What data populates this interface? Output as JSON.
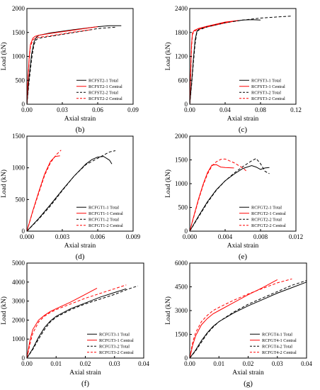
{
  "chart_data": [
    {
      "panel_label": "(b)",
      "type": "line",
      "xlabel": "Axial strain",
      "ylabel": "Load (kN)",
      "xlim": [
        0,
        0.09
      ],
      "ylim": [
        0,
        2000
      ],
      "xticks": [
        "0.00",
        "0.03",
        "0.06",
        "0.09"
      ],
      "yticks": [
        "0",
        "500",
        "1000",
        "1500",
        "2000"
      ],
      "legend_position": "bottom-right",
      "series": [
        {
          "name": "RCFST2-1 Total",
          "color": "#000000",
          "dash": "solid",
          "x": [
            0,
            0.002,
            0.004,
            0.006,
            0.008,
            0.01,
            0.02,
            0.04,
            0.06,
            0.07,
            0.08
          ],
          "y": [
            0,
            600,
            1050,
            1300,
            1400,
            1440,
            1490,
            1560,
            1620,
            1640,
            1640
          ]
        },
        {
          "name": "RCFST2-1 Central",
          "color": "#ff0000",
          "dash": "solid",
          "x": [
            0,
            0.001,
            0.002,
            0.003,
            0.005,
            0.007,
            0.01,
            0.02,
            0.04,
            0.06
          ],
          "y": [
            0,
            600,
            1000,
            1250,
            1380,
            1420,
            1440,
            1480,
            1550,
            1620
          ]
        },
        {
          "name": "RCFST2-2 Total",
          "color": "#000000",
          "dash": "dashed",
          "x": [
            0,
            0.002,
            0.004,
            0.006,
            0.008,
            0.01,
            0.02,
            0.04,
            0.06,
            0.075
          ],
          "y": [
            0,
            500,
            950,
            1250,
            1350,
            1380,
            1420,
            1500,
            1580,
            1610
          ]
        },
        {
          "name": "RCFST2-2 Central",
          "color": "#ff0000",
          "dash": "dashed",
          "x": [
            0,
            0.001,
            0.002,
            0.003,
            0.005,
            0.007,
            0.01,
            0.02,
            0.04,
            0.055
          ],
          "y": [
            0,
            550,
            950,
            1200,
            1340,
            1380,
            1400,
            1430,
            1510,
            1560
          ]
        }
      ]
    },
    {
      "panel_label": "(c)",
      "type": "line",
      "xlabel": "Axial strain",
      "ylabel": "Load (kN)",
      "xlim": [
        0,
        0.12
      ],
      "ylim": [
        0,
        2400
      ],
      "xticks": [
        "0.00",
        "0.04",
        "0.08",
        "0.12"
      ],
      "yticks": [
        "0",
        "600",
        "1200",
        "1800",
        "2400"
      ],
      "legend_position": "bottom-right",
      "series": [
        {
          "name": "RCFST3-1 Total",
          "color": "#000000",
          "dash": "solid",
          "x": [
            0,
            0.002,
            0.004,
            0.006,
            0.008,
            0.01,
            0.02,
            0.04,
            0.06,
            0.07,
            0.08
          ],
          "y": [
            0,
            500,
            1100,
            1600,
            1820,
            1880,
            1950,
            2050,
            2110,
            2120,
            2110
          ]
        },
        {
          "name": "RCFST3-1 Central",
          "color": "#ff0000",
          "dash": "solid",
          "x": [
            0,
            0.001,
            0.002,
            0.003,
            0.005,
            0.01,
            0.02,
            0.04,
            0.055
          ],
          "y": [
            0,
            800,
            1500,
            1780,
            1850,
            1900,
            1960,
            2060,
            2100
          ]
        },
        {
          "name": "RCFST3-2 Total",
          "color": "#000000",
          "dash": "dashed",
          "x": [
            0,
            0.002,
            0.004,
            0.006,
            0.008,
            0.01,
            0.02,
            0.04,
            0.06,
            0.08,
            0.1,
            0.115
          ],
          "y": [
            0,
            450,
            1000,
            1500,
            1800,
            1860,
            1940,
            2040,
            2110,
            2160,
            2190,
            2210
          ]
        },
        {
          "name": "RCFST3-2 Central",
          "color": "#ff0000",
          "dash": "dashed",
          "x": [
            0,
            0.001,
            0.002,
            0.003,
            0.005,
            0.01,
            0.02,
            0.04,
            0.05
          ],
          "y": [
            0,
            700,
            1400,
            1750,
            1830,
            1880,
            1940,
            2040,
            2080
          ]
        }
      ]
    },
    {
      "panel_label": "(d)",
      "type": "line",
      "xlabel": "Axial strain",
      "ylabel": "Load (kN)",
      "xlim": [
        0,
        0.009
      ],
      "ylim": [
        0,
        1500
      ],
      "xticks": [
        "0.000",
        "0.003",
        "0.006",
        "0.009"
      ],
      "yticks": [
        "0",
        "500",
        "1000",
        "1500"
      ],
      "legend_position": "bottom-right",
      "series": [
        {
          "name": "RCFGT1-1 Total",
          "color": "#000000",
          "dash": "solid",
          "x": [
            0,
            0.001,
            0.002,
            0.003,
            0.004,
            0.005,
            0.0055,
            0.006,
            0.0065,
            0.007,
            0.0072
          ],
          "y": [
            0,
            200,
            420,
            650,
            870,
            1060,
            1130,
            1170,
            1180,
            1120,
            1060
          ]
        },
        {
          "name": "RCFGT1-1 Central",
          "color": "#ff0000",
          "dash": "solid",
          "x": [
            0,
            0.0005,
            0.001,
            0.0015,
            0.002,
            0.0024,
            0.0028
          ],
          "y": [
            0,
            320,
            620,
            900,
            1100,
            1180,
            1190
          ]
        },
        {
          "name": "RCFGT1-2 Total",
          "color": "#000000",
          "dash": "dashed",
          "x": [
            0,
            0.001,
            0.002,
            0.003,
            0.004,
            0.005,
            0.006,
            0.0065,
            0.007,
            0.0075
          ],
          "y": [
            0,
            190,
            400,
            640,
            870,
            1050,
            1150,
            1200,
            1250,
            1270
          ]
        },
        {
          "name": "RCFGT1-2 Central",
          "color": "#ff0000",
          "dash": "dashed",
          "x": [
            0,
            0.0005,
            0.001,
            0.0015,
            0.002,
            0.0025,
            0.0029
          ],
          "y": [
            0,
            310,
            600,
            880,
            1080,
            1210,
            1280
          ]
        }
      ]
    },
    {
      "panel_label": "(e)",
      "type": "line",
      "xlabel": "Axial strain",
      "ylabel": "Load (kN)",
      "xlim": [
        0,
        0.012
      ],
      "ylim": [
        0,
        2000
      ],
      "xticks": [
        "0.000",
        "0.004",
        "0.008",
        "0.012"
      ],
      "yticks": [
        "0",
        "500",
        "1000",
        "1500",
        "2000"
      ],
      "legend_position": "bottom-right",
      "series": [
        {
          "name": "RCFGT2-1 Total",
          "color": "#000000",
          "dash": "solid",
          "x": [
            0,
            0.001,
            0.002,
            0.003,
            0.004,
            0.005,
            0.006,
            0.007,
            0.0075,
            0.008,
            0.0085,
            0.009
          ],
          "y": [
            0,
            320,
            620,
            870,
            1060,
            1200,
            1320,
            1380,
            1350,
            1300,
            1330,
            1340
          ]
        },
        {
          "name": "RCFGT2-1 Central",
          "color": "#ff0000",
          "dash": "solid",
          "x": [
            0,
            0.0005,
            0.001,
            0.0015,
            0.002,
            0.0025,
            0.003,
            0.0035,
            0.004,
            0.005
          ],
          "y": [
            0,
            350,
            680,
            980,
            1230,
            1390,
            1400,
            1350,
            1340,
            1330
          ]
        },
        {
          "name": "RCFGT2-2 Total",
          "color": "#000000",
          "dash": "dashed",
          "x": [
            0,
            0.001,
            0.002,
            0.003,
            0.004,
            0.005,
            0.006,
            0.007,
            0.0075,
            0.008,
            0.0085,
            0.009
          ],
          "y": [
            0,
            300,
            600,
            860,
            1060,
            1220,
            1360,
            1480,
            1530,
            1420,
            1260,
            1210
          ]
        },
        {
          "name": "RCFGT2-2 Central",
          "color": "#ff0000",
          "dash": "dashed",
          "x": [
            0,
            0.0005,
            0.001,
            0.0015,
            0.002,
            0.0025,
            0.003,
            0.0035,
            0.004,
            0.005,
            0.006,
            0.0065
          ],
          "y": [
            0,
            330,
            660,
            960,
            1200,
            1370,
            1460,
            1510,
            1520,
            1440,
            1330,
            1250
          ]
        }
      ]
    },
    {
      "panel_label": "(f)",
      "type": "line",
      "xlabel": "Axial strain",
      "ylabel": "Load (kN)",
      "xlim": [
        0,
        0.04
      ],
      "ylim": [
        0,
        5000
      ],
      "xticks": [
        "0.00",
        "0.01",
        "0.02",
        "0.03",
        "0.04"
      ],
      "yticks": [
        "0",
        "1000",
        "2000",
        "3000",
        "4000",
        "5000"
      ],
      "legend_position": "bottom-right",
      "series": [
        {
          "name": "RCFGT3-1 Total",
          "color": "#000000",
          "dash": "solid",
          "x": [
            0,
            0.002,
            0.004,
            0.006,
            0.008,
            0.01,
            0.015,
            0.02,
            0.025,
            0.03,
            0.034
          ],
          "y": [
            0,
            500,
            1100,
            1600,
            1950,
            2200,
            2600,
            2900,
            3200,
            3450,
            3650
          ]
        },
        {
          "name": "RCFGT3-1 Central",
          "color": "#ff0000",
          "dash": "solid",
          "x": [
            0,
            0.001,
            0.002,
            0.004,
            0.006,
            0.008,
            0.01,
            0.015,
            0.02,
            0.024
          ],
          "y": [
            0,
            900,
            1500,
            2000,
            2250,
            2450,
            2600,
            2950,
            3350,
            3680
          ]
        },
        {
          "name": "RCFGT3-2 Total",
          "color": "#000000",
          "dash": "dashed",
          "x": [
            0,
            0.002,
            0.004,
            0.006,
            0.008,
            0.01,
            0.015,
            0.02,
            0.025,
            0.03,
            0.035,
            0.038
          ],
          "y": [
            0,
            450,
            1000,
            1500,
            1900,
            2150,
            2550,
            2850,
            3100,
            3350,
            3650,
            3800
          ]
        },
        {
          "name": "RCFGT3-2 Central",
          "color": "#ff0000",
          "dash": "dashed",
          "x": [
            0,
            0.001,
            0.002,
            0.004,
            0.006,
            0.008,
            0.01,
            0.015,
            0.02,
            0.025,
            0.03,
            0.034
          ],
          "y": [
            0,
            700,
            1300,
            1900,
            2200,
            2400,
            2550,
            2850,
            3150,
            3400,
            3650,
            3850
          ]
        }
      ]
    },
    {
      "panel_label": "(g)",
      "type": "line",
      "xlabel": "Axial strain",
      "ylabel": "Load (kN)",
      "xlim": [
        0,
        0.04
      ],
      "ylim": [
        0,
        6000
      ],
      "xticks": [
        "0.00",
        "0.01",
        "0.02",
        "0.03",
        "0.04"
      ],
      "yticks": [
        "0",
        "1500",
        "3000",
        "4500",
        "6000"
      ],
      "legend_position": "bottom-right",
      "series": [
        {
          "name": "RCFGT4-1 Total",
          "color": "#000000",
          "dash": "solid",
          "x": [
            0,
            0.002,
            0.004,
            0.006,
            0.008,
            0.01,
            0.015,
            0.02,
            0.025,
            0.03,
            0.035,
            0.04
          ],
          "y": [
            0,
            500,
            1100,
            1600,
            2000,
            2300,
            2850,
            3300,
            3700,
            4100,
            4450,
            4800
          ]
        },
        {
          "name": "RCFGT4-1 Central",
          "color": "#ff0000",
          "dash": "solid",
          "x": [
            0,
            0.001,
            0.002,
            0.004,
            0.006,
            0.008,
            0.01,
            0.015,
            0.02,
            0.025,
            0.03
          ],
          "y": [
            0,
            800,
            1400,
            2100,
            2500,
            2800,
            3000,
            3500,
            4000,
            4450,
            4950
          ]
        },
        {
          "name": "RCFGT4-2 Total",
          "color": "#000000",
          "dash": "dashed",
          "x": [
            0,
            0.002,
            0.004,
            0.006,
            0.008,
            0.01,
            0.015,
            0.02,
            0.025,
            0.03,
            0.035,
            0.04
          ],
          "y": [
            0,
            450,
            1000,
            1550,
            1950,
            2300,
            2900,
            3400,
            3800,
            4200,
            4600,
            4900
          ]
        },
        {
          "name": "RCFGT4-2 Central",
          "color": "#ff0000",
          "dash": "dashed",
          "x": [
            0,
            0.001,
            0.002,
            0.004,
            0.006,
            0.008,
            0.01,
            0.015,
            0.02,
            0.025,
            0.03,
            0.035
          ],
          "y": [
            0,
            1000,
            1600,
            2300,
            2700,
            3000,
            3200,
            3650,
            4050,
            4400,
            4750,
            5000
          ]
        }
      ]
    }
  ]
}
